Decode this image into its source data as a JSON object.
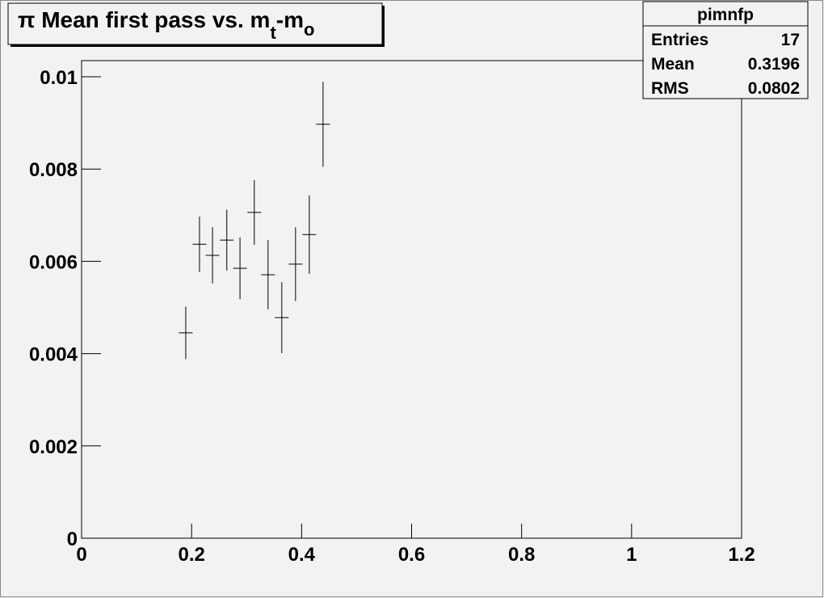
{
  "chart_data": {
    "type": "errorbar",
    "title": [
      "π Mean first pass vs. m",
      "t",
      "-m",
      "o"
    ],
    "stats": {
      "name": "pimnfp",
      "labels": [
        "Entries",
        "Mean",
        "RMS"
      ],
      "values": [
        17,
        0.3196,
        0.0802
      ]
    },
    "x": [
      0.1894,
      0.2144,
      0.238,
      0.264,
      0.288,
      0.314,
      0.339,
      0.364,
      0.389,
      0.414,
      0.439
    ],
    "xerr": [
      0.0125,
      0.0125,
      0.0125,
      0.0125,
      0.0125,
      0.0125,
      0.0125,
      0.0125,
      0.0125,
      0.0125,
      0.0125
    ],
    "values": [
      0.00445,
      0.00637,
      0.00613,
      0.00646,
      0.00585,
      0.00706,
      0.00571,
      0.00478,
      0.00594,
      0.00658,
      0.00897
    ],
    "errors": [
      0.00057,
      0.0006,
      0.00061,
      0.00066,
      0.00067,
      0.0007,
      0.00075,
      0.00077,
      0.0008,
      0.00085,
      0.00092
    ],
    "color": "#000000",
    "xlim": [
      0,
      1.2
    ],
    "xticks": [
      0,
      0.2,
      0.4,
      0.6,
      0.8,
      1,
      1.2
    ],
    "ylim": [
      0,
      0.01035
    ],
    "yticks": [
      0,
      0.002,
      0.004,
      0.006,
      0.008,
      0.01
    ]
  }
}
